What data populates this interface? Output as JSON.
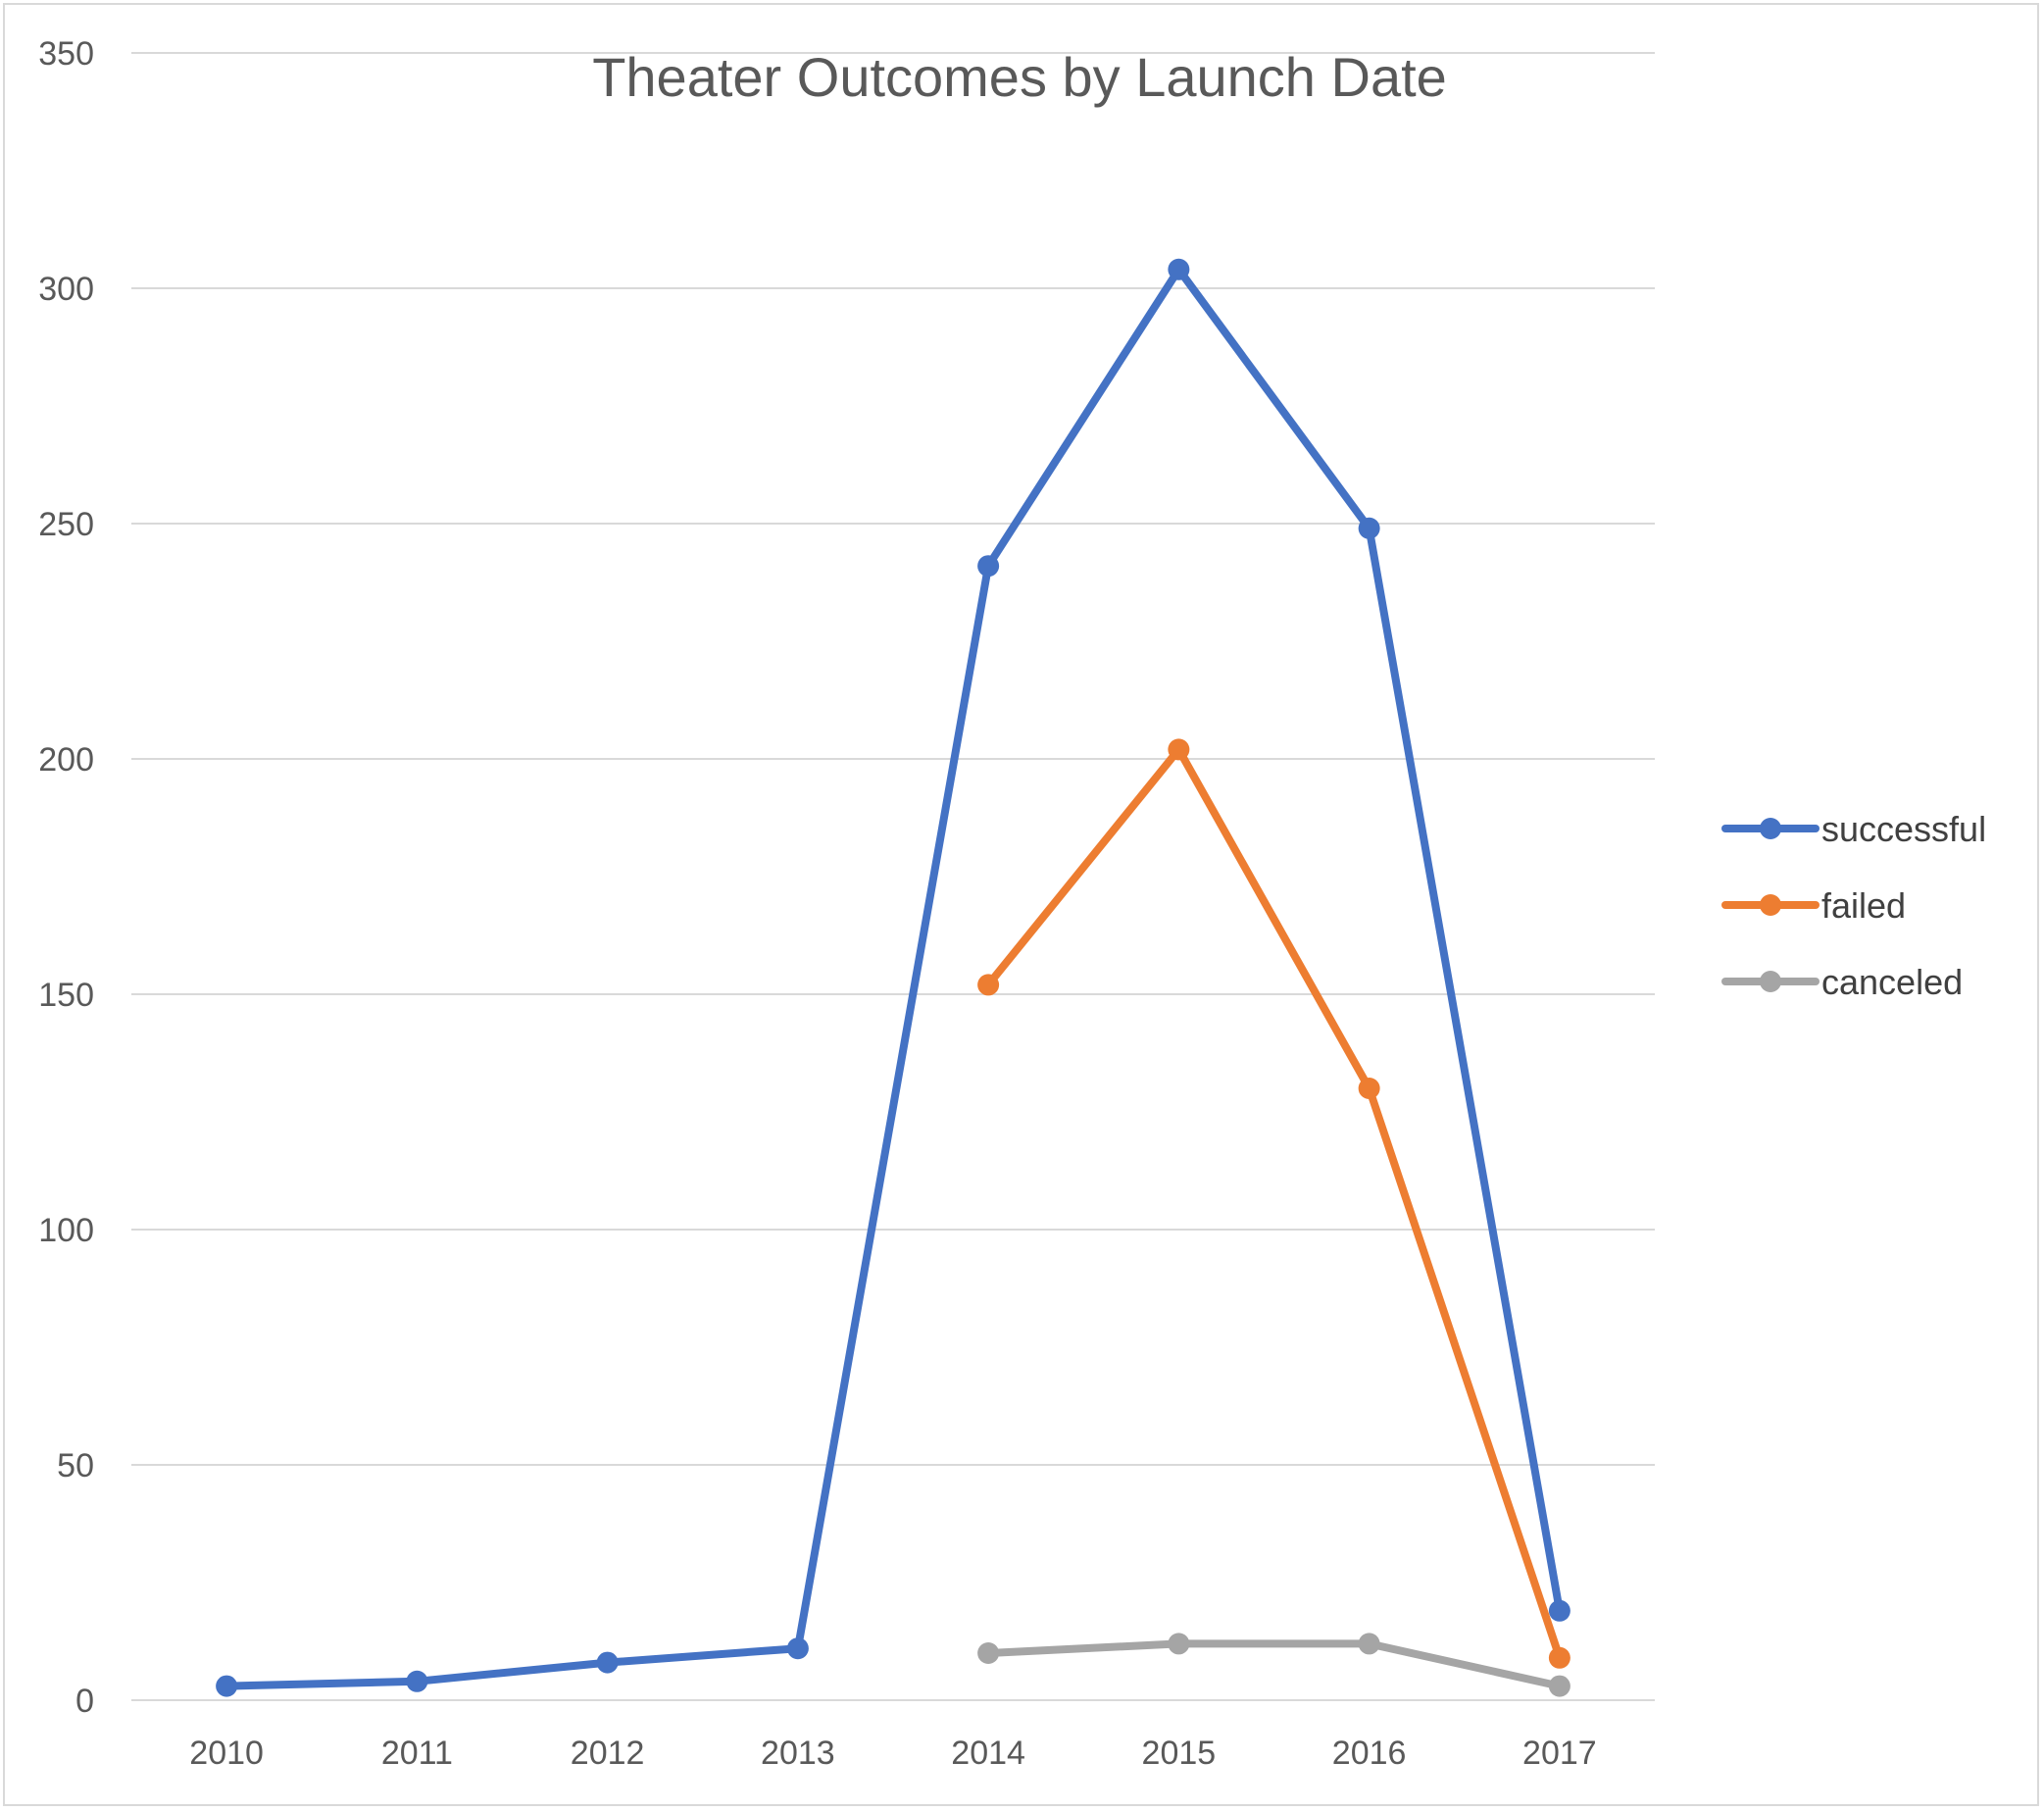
{
  "chart_data": {
    "type": "line",
    "title": "Theater Outcomes by Launch Date",
    "xlabel": "",
    "ylabel": "",
    "categories": [
      "2010",
      "2011",
      "2012",
      "2013",
      "2014",
      "2015",
      "2016",
      "2017"
    ],
    "ylim": [
      0,
      350
    ],
    "yticks": [
      0,
      50,
      100,
      150,
      200,
      250,
      300,
      350
    ],
    "grid": true,
    "legend_position": "right",
    "series": [
      {
        "name": "successful",
        "color": "#4472C4",
        "values": [
          3,
          4,
          8,
          11,
          241,
          304,
          249,
          19
        ]
      },
      {
        "name": "failed",
        "color": "#ED7D31",
        "values": [
          null,
          null,
          null,
          null,
          152,
          202,
          130,
          9
        ]
      },
      {
        "name": "canceled",
        "color": "#A5A5A5",
        "values": [
          null,
          null,
          null,
          null,
          10,
          12,
          12,
          3
        ]
      }
    ]
  }
}
